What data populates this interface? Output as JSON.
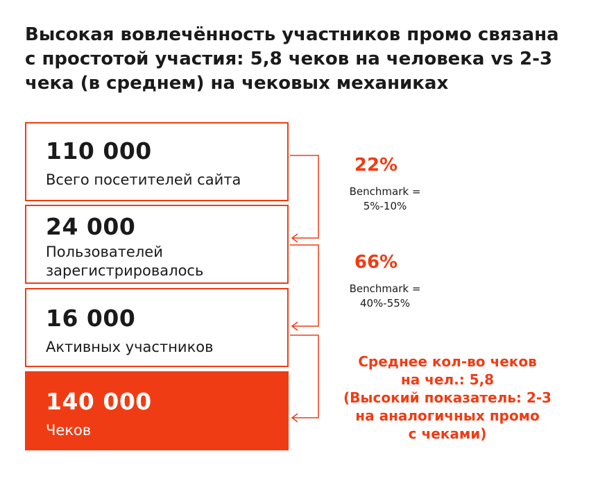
{
  "title": {
    "line1": "Высокая вовлечённость участников промо связана",
    "line2": "с простотой участия: 5,8 чеков на человека vs 2-3",
    "line3": "чека (в среднем) на чековых механиках"
  },
  "funnel": [
    {
      "value": "110 000",
      "label_lines": [
        "Всего посетителей сайта"
      ]
    },
    {
      "value": "24 000",
      "label_lines": [
        "Пользователей",
        "зарегистрировалось"
      ]
    },
    {
      "value": "16 000",
      "label_lines": [
        "Активных участников"
      ]
    },
    {
      "value": "140 000",
      "label_lines": [
        "Чеков"
      ]
    }
  ],
  "conversions": [
    {
      "percent": "22%",
      "benchmark_line1": "Benchmark =",
      "benchmark_line2": "5%-10%"
    },
    {
      "percent": "66%",
      "benchmark_line1": "Benchmark =",
      "benchmark_line2": "40%-55%"
    }
  ],
  "note": {
    "lines": [
      "Среднее кол-во чеков",
      "на чел.: 5,8",
      "(Высокий показатель: 2-3",
      "на аналогичных промо",
      "с чеками)"
    ]
  },
  "colors": {
    "accent": "#f03c14",
    "text": "#1a1a1a"
  }
}
